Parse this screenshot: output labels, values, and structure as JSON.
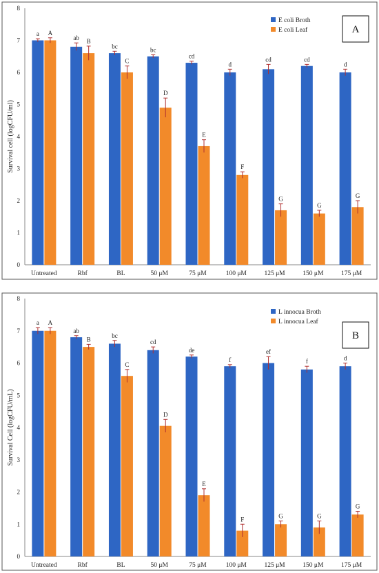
{
  "colors": {
    "broth": "#2e66c4",
    "leaf": "#f28a2a",
    "error": "#b03030",
    "sig_broth": "#222222",
    "sig_leaf": "#222222"
  },
  "chart_data": [
    {
      "type": "bar",
      "panel_label": "A",
      "ylabel": "Survival cell (logCFU/ml)",
      "ylim": [
        0,
        8
      ],
      "yticks": [
        "0",
        "1",
        "2",
        "3",
        "4",
        "5",
        "6",
        "7",
        "8"
      ],
      "legend_position": "top-right",
      "categories": [
        "Untreated",
        "Rbf",
        "BL",
        "50 μM",
        "75 μM",
        "100 μM",
        "125 μM",
        "150 μM",
        "175 μM"
      ],
      "series": [
        {
          "name": "E coli Broth",
          "color_key": "broth",
          "values": [
            7.0,
            6.8,
            6.6,
            6.5,
            6.3,
            6.0,
            6.1,
            6.2,
            6.0
          ],
          "errors": [
            0.05,
            0.12,
            0.06,
            0.05,
            0.05,
            0.1,
            0.15,
            0.05,
            0.1
          ],
          "letters": [
            "a",
            "ab",
            "bc",
            "bc",
            "cd",
            "d",
            "cd",
            "cd",
            "d"
          ]
        },
        {
          "name": "E coli Leaf",
          "color_key": "leaf",
          "values": [
            7.0,
            6.6,
            6.0,
            4.9,
            3.7,
            2.8,
            1.7,
            1.6,
            1.8
          ],
          "errors": [
            0.08,
            0.22,
            0.2,
            0.3,
            0.2,
            0.1,
            0.2,
            0.1,
            0.2
          ],
          "letters": [
            "A",
            "B",
            "C",
            "D",
            "E",
            "F",
            "G",
            "G",
            "G"
          ]
        }
      ]
    },
    {
      "type": "bar",
      "panel_label": "B",
      "ylabel": "Survival Cell (logCFU/mL)",
      "ylim": [
        0,
        8
      ],
      "yticks": [
        "0",
        "1",
        "2",
        "3",
        "4",
        "5",
        "6",
        "7",
        "8"
      ],
      "legend_position": "top-right",
      "categories": [
        "Untreated",
        "Rbf",
        "BL",
        "50 μM",
        "75 μM",
        "100 μM",
        "125 μM",
        "150 μM",
        "175 μM"
      ],
      "series": [
        {
          "name": "L innocua Broth",
          "color_key": "broth",
          "values": [
            7.0,
            6.8,
            6.6,
            6.4,
            6.2,
            5.9,
            6.0,
            5.8,
            5.9
          ],
          "errors": [
            0.1,
            0.05,
            0.1,
            0.1,
            0.05,
            0.05,
            0.2,
            0.1,
            0.1
          ],
          "letters": [
            "a",
            "ab",
            "bc",
            "cd",
            "de",
            "f",
            "ef",
            "f",
            "d"
          ]
        },
        {
          "name": "L innocua Leaf",
          "color_key": "leaf",
          "values": [
            7.0,
            6.5,
            5.6,
            4.05,
            1.9,
            0.8,
            1.0,
            0.9,
            1.3
          ],
          "errors": [
            0.1,
            0.08,
            0.2,
            0.2,
            0.2,
            0.2,
            0.1,
            0.2,
            0.1
          ],
          "letters": [
            "A",
            "B",
            "C",
            "D",
            "E",
            "F",
            "G",
            "G",
            "G"
          ]
        }
      ]
    }
  ]
}
